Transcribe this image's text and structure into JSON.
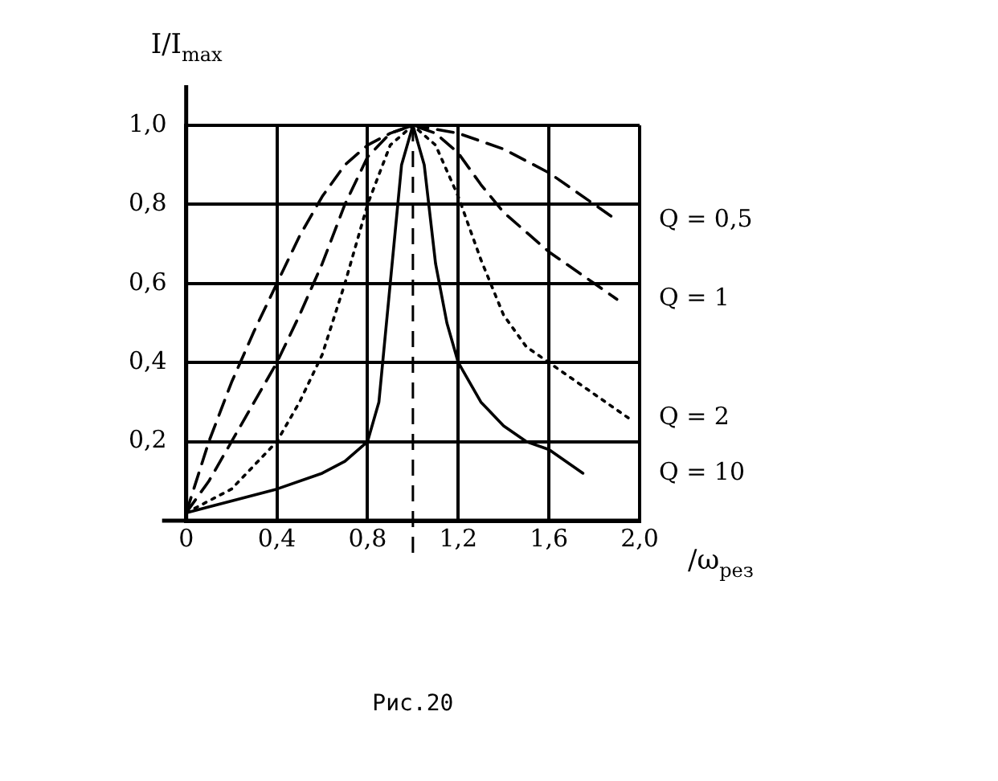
{
  "chart_data": {
    "type": "line",
    "xlabel": "/ω$_{рез}$",
    "ylabel": "I/I$_{max}$",
    "annotations": [
      "Рис.20"
    ],
    "xlim": [
      0,
      2.0
    ],
    "ylim": [
      0,
      1.0
    ],
    "xticks": [
      0,
      {
        "value": 0.4,
        "label": "0,4"
      },
      {
        "value": 0.8,
        "label": "0,8"
      },
      {
        "value": 1.2,
        "label": "1,2"
      },
      {
        "value": 1.6,
        "label": "1,6"
      },
      {
        "value": 2.0,
        "label": "2,0"
      }
    ],
    "yticks": [
      {
        "value": 0,
        "label": null
      },
      {
        "value": 0.2,
        "label": "0,2"
      },
      {
        "value": 0.4,
        "label": "0,4"
      },
      {
        "value": 0.6,
        "label": "0,6"
      },
      {
        "value": 0.8,
        "label": "0,8"
      },
      {
        "value": 1.0,
        "label": "1,0"
      }
    ],
    "grid": true,
    "legend": false,
    "marker": "none",
    "ref_lines": [
      {
        "axis": "x",
        "value": 1.0,
        "line_style": "dashed"
      }
    ],
    "series": [
      {
        "name": "Q = 0,5",
        "color": "#000000",
        "line_style": "dashed",
        "x": [
          0,
          0.1,
          0.2,
          0.3,
          0.4,
          0.5,
          0.6,
          0.7,
          0.8,
          0.9,
          1.0,
          1.2,
          1.4,
          1.6,
          1.8,
          1.9
        ],
        "values": [
          0.02,
          0.2,
          0.35,
          0.48,
          0.6,
          0.72,
          0.82,
          0.9,
          0.95,
          0.98,
          1.0,
          0.98,
          0.94,
          0.88,
          0.8,
          0.76
        ]
      },
      {
        "name": "Q = 1",
        "color": "#000000",
        "line_style": "dashed",
        "x": [
          0,
          0.1,
          0.2,
          0.3,
          0.4,
          0.5,
          0.6,
          0.7,
          0.8,
          0.9,
          1.0,
          1.1,
          1.2,
          1.3,
          1.4,
          1.6,
          1.8,
          1.9
        ],
        "values": [
          0.02,
          0.1,
          0.2,
          0.3,
          0.4,
          0.52,
          0.65,
          0.8,
          0.92,
          0.98,
          1.0,
          0.98,
          0.93,
          0.85,
          0.78,
          0.68,
          0.6,
          0.56
        ]
      },
      {
        "name": "Q = 2",
        "color": "#000000",
        "line_style": "dotted",
        "x": [
          0,
          0.2,
          0.4,
          0.5,
          0.6,
          0.7,
          0.8,
          0.9,
          1.0,
          1.1,
          1.2,
          1.3,
          1.4,
          1.5,
          1.6,
          1.8,
          1.95
        ],
        "values": [
          0.02,
          0.08,
          0.2,
          0.3,
          0.42,
          0.6,
          0.8,
          0.95,
          1.0,
          0.95,
          0.82,
          0.66,
          0.52,
          0.44,
          0.4,
          0.32,
          0.26
        ]
      },
      {
        "name": "Q = 10",
        "color": "#000000",
        "line_style": "solid",
        "x": [
          0,
          0.2,
          0.4,
          0.6,
          0.7,
          0.8,
          0.85,
          0.9,
          0.95,
          1.0,
          1.05,
          1.1,
          1.15,
          1.2,
          1.3,
          1.4,
          1.5,
          1.6,
          1.75
        ],
        "values": [
          0.02,
          0.05,
          0.08,
          0.12,
          0.15,
          0.2,
          0.3,
          0.6,
          0.9,
          1.0,
          0.9,
          0.65,
          0.5,
          0.4,
          0.3,
          0.24,
          0.2,
          0.18,
          0.12
        ]
      }
    ]
  }
}
